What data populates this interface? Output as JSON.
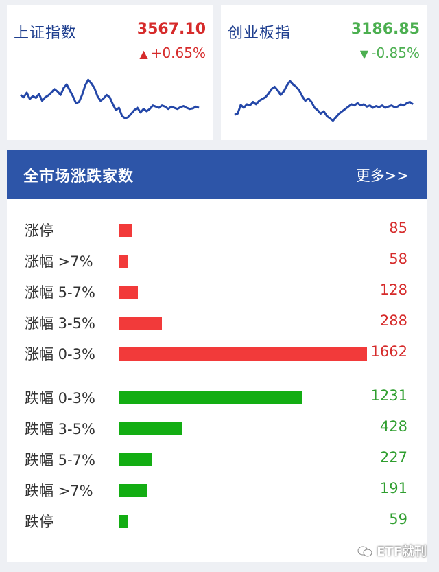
{
  "indices": [
    {
      "name": "上证指数",
      "value": "3567.10",
      "change": "+0.65%",
      "arrow": "▲",
      "color": "#d62b2b",
      "line_color": "#2447a8",
      "spark": [
        0.62,
        0.58,
        0.66,
        0.55,
        0.6,
        0.57,
        0.64,
        0.52,
        0.58,
        0.61,
        0.66,
        0.72,
        0.68,
        0.62,
        0.74,
        0.8,
        0.7,
        0.6,
        0.48,
        0.5,
        0.62,
        0.78,
        0.88,
        0.82,
        0.74,
        0.6,
        0.52,
        0.56,
        0.62,
        0.58,
        0.46,
        0.36,
        0.4,
        0.26,
        0.22,
        0.24,
        0.3,
        0.36,
        0.4,
        0.32,
        0.38,
        0.34,
        0.38,
        0.44,
        0.42,
        0.4,
        0.44,
        0.42,
        0.38,
        0.42,
        0.4,
        0.38,
        0.41,
        0.43,
        0.4,
        0.38,
        0.39,
        0.42,
        0.4
      ]
    },
    {
      "name": "创业板指",
      "value": "3186.85",
      "change": "-0.85%",
      "arrow": "▼",
      "color": "#4caf50",
      "line_color": "#2447a8",
      "spark": [
        0.28,
        0.3,
        0.45,
        0.4,
        0.46,
        0.44,
        0.5,
        0.46,
        0.52,
        0.55,
        0.58,
        0.64,
        0.72,
        0.76,
        0.7,
        0.62,
        0.68,
        0.78,
        0.86,
        0.8,
        0.76,
        0.7,
        0.6,
        0.52,
        0.56,
        0.5,
        0.4,
        0.36,
        0.3,
        0.34,
        0.26,
        0.22,
        0.18,
        0.24,
        0.3,
        0.34,
        0.38,
        0.42,
        0.46,
        0.44,
        0.48,
        0.44,
        0.46,
        0.42,
        0.44,
        0.4,
        0.43,
        0.41,
        0.44,
        0.4,
        0.42,
        0.44,
        0.41,
        0.42,
        0.46,
        0.44,
        0.48,
        0.5,
        0.46
      ]
    }
  ],
  "panel": {
    "title": "全市场涨跌家数",
    "more_label": "更多>>"
  },
  "colors": {
    "up": "#f23a3a",
    "down": "#13ad13",
    "up_text": "#d62b2b",
    "down_text": "#2f9e2f"
  },
  "rows": [
    {
      "label": "涨停",
      "count": 85,
      "dir": "up"
    },
    {
      "label": "涨幅 >7%",
      "count": 58,
      "dir": "up"
    },
    {
      "label": "涨幅 5-7%",
      "count": 128,
      "dir": "up"
    },
    {
      "label": "涨幅 3-5%",
      "count": 288,
      "dir": "up"
    },
    {
      "label": "涨幅 0-3%",
      "count": 1662,
      "dir": "up"
    },
    {
      "label": "跌幅 0-3%",
      "count": 1231,
      "dir": "down"
    },
    {
      "label": "跌幅 3-5%",
      "count": 428,
      "dir": "down"
    },
    {
      "label": "跌幅 5-7%",
      "count": 227,
      "dir": "down"
    },
    {
      "label": "跌幅 >7%",
      "count": 191,
      "dir": "down"
    },
    {
      "label": "跌停",
      "count": 59,
      "dir": "down"
    }
  ],
  "watermark": "ETF就刊"
}
